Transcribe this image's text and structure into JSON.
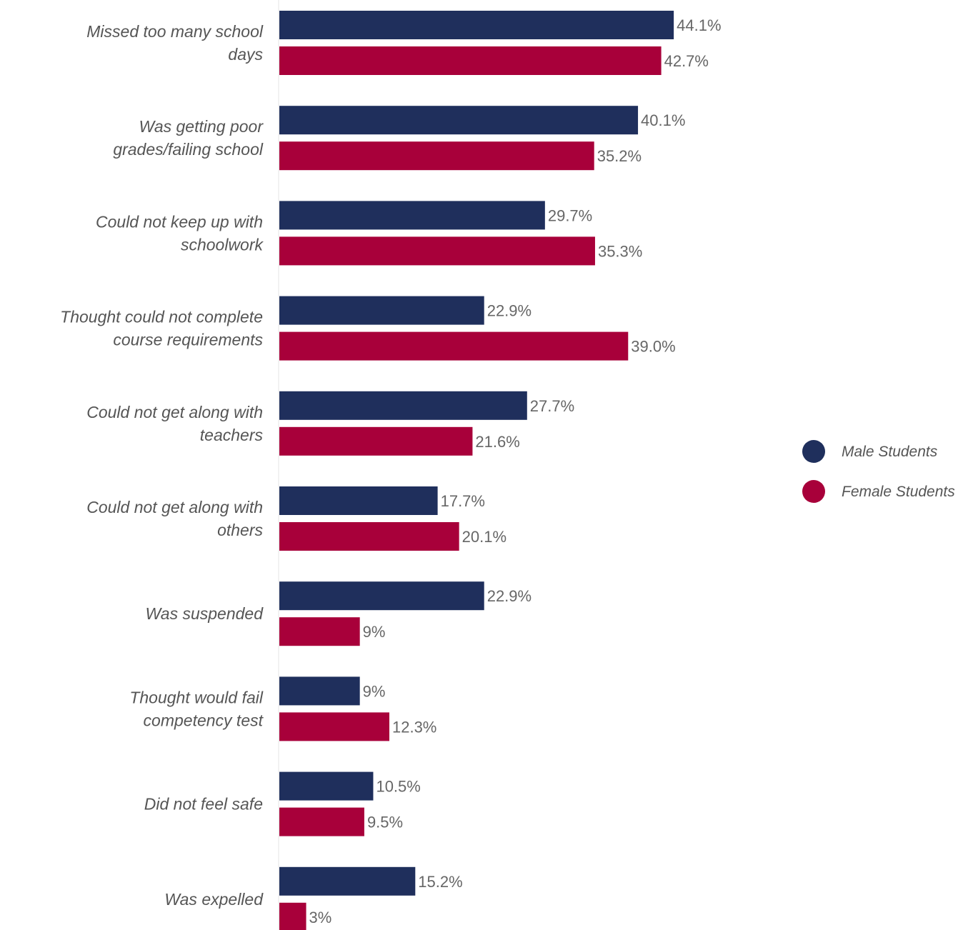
{
  "colors": {
    "male": "#1f2f5c",
    "female": "#a8003a",
    "axis": "#e4e4e4"
  },
  "legend": [
    {
      "name": "Male Students",
      "color": "#1f2f5c"
    },
    {
      "name": "Female Students",
      "color": "#a8003a"
    }
  ],
  "chart_data": {
    "type": "bar",
    "orientation": "horizontal",
    "title": "",
    "xlabel": "",
    "ylabel": "",
    "xlim": [
      0,
      50
    ],
    "grid": false,
    "legend_position": "right",
    "categories": [
      [
        "Missed too many school",
        "days"
      ],
      [
        "Was getting poor",
        "grades/failing school"
      ],
      [
        "Could not keep up with",
        "schoolwork"
      ],
      [
        "Thought could not complete",
        "course requirements"
      ],
      [
        "Could not get along with",
        "teachers"
      ],
      [
        "Could not get along with",
        "others"
      ],
      [
        "Was suspended"
      ],
      [
        "Thought would fail",
        "competency test"
      ],
      [
        "Did not feel safe"
      ],
      [
        "Was expelled"
      ]
    ],
    "series": [
      {
        "name": "Male Students",
        "values": [
          44.1,
          40.1,
          29.7,
          22.9,
          27.7,
          17.7,
          22.9,
          9,
          10.5,
          15.2
        ],
        "labels": [
          "44.1%",
          "40.1%",
          "29.7%",
          "22.9%",
          "27.7%",
          "17.7%",
          "22.9%",
          "9%",
          "10.5%",
          "15.2%"
        ]
      },
      {
        "name": "Female Students",
        "values": [
          42.7,
          35.2,
          35.3,
          39.0,
          21.6,
          20.1,
          9,
          12.3,
          9.5,
          3
        ],
        "labels": [
          "42.7%",
          "35.2%",
          "35.3%",
          "39.0%",
          "21.6%",
          "20.1%",
          "9%",
          "12.3%",
          "9.5%",
          "3%"
        ]
      }
    ]
  }
}
